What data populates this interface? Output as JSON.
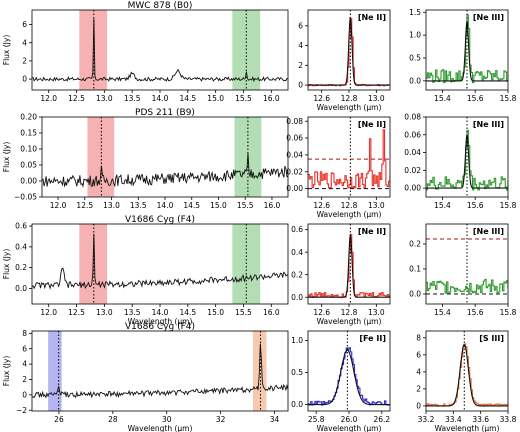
{
  "chart_data": [
    {
      "id": "p1",
      "type": "line",
      "title": "MWC 878 (B0)",
      "xlabel": "",
      "ylabel": "Flux (Jy)",
      "xlim": [
        11.7,
        16.3
      ],
      "ylim": [
        -1.2,
        7.6
      ],
      "xticks": [
        "12.0",
        "12.5",
        "13.0",
        "13.5",
        "14.0",
        "14.5",
        "15.0",
        "15.5",
        "16.0"
      ],
      "yticks": [
        "0",
        "2",
        "4",
        "6"
      ],
      "bands": [
        {
          "from": 12.55,
          "to": 13.05,
          "color": "red"
        },
        {
          "from": 15.3,
          "to": 15.8,
          "color": "green"
        }
      ],
      "vlines": [
        12.81,
        15.55
      ],
      "line_color": "black",
      "features": [
        {
          "x": 12.81,
          "h": 6.8,
          "w": 0.008
        },
        {
          "x": 13.5,
          "h": 0.6,
          "w": 0.04
        },
        {
          "x": 14.32,
          "h": 0.9,
          "w": 0.05
        },
        {
          "x": 15.55,
          "h": 1.0,
          "w": 0.01
        }
      ],
      "baseline": 0,
      "noise": 0.2,
      "trend": 0
    },
    {
      "id": "p2",
      "type": "line",
      "title": "[Ne II]",
      "xlabel": "Wavelength (μm)",
      "ylabel": "",
      "xlim": [
        12.5,
        13.1
      ],
      "ylim": [
        -0.5,
        7.6
      ],
      "xticks": [
        "12.6",
        "12.8",
        "13.0"
      ],
      "yticks": [
        "0",
        "2",
        "4",
        "6"
      ],
      "vlines": [
        12.81
      ],
      "line_color": "red",
      "fit_color": "black",
      "features": [
        {
          "x": 12.81,
          "h": 6.8,
          "w": 0.012
        }
      ],
      "baseline": 0,
      "noise": 0.08,
      "trend": 0,
      "step": true
    },
    {
      "id": "p3",
      "type": "line",
      "title": "[Ne III]",
      "xlabel": "",
      "ylabel": "",
      "xlim": [
        15.3,
        15.8
      ],
      "ylim": [
        -0.2,
        1.55
      ],
      "xticks": [
        "15.4",
        "15.6",
        "15.8"
      ],
      "yticks": [
        "0.0",
        "0.5",
        "1.0",
        "1.5"
      ],
      "vlines": [
        15.55
      ],
      "line_color": "green",
      "fit_color": "black",
      "features": [
        {
          "x": 15.55,
          "h": 1.3,
          "w": 0.01
        }
      ],
      "baseline": 0.1,
      "noise": 0.15,
      "trend": 0,
      "step": true
    },
    {
      "id": "p4",
      "type": "line",
      "title": "PDS 211 (B9)",
      "xlabel": "",
      "ylabel": "Flux (Jy)",
      "xlim": [
        11.7,
        16.3
      ],
      "ylim": [
        -0.05,
        0.2
      ],
      "xticks": [
        "12.0",
        "12.5",
        "13.0",
        "13.5",
        "14.0",
        "14.5",
        "15.0",
        "15.5",
        "16.0"
      ],
      "yticks": [
        "−0.05",
        "0.00",
        "0.05",
        "0.10",
        "0.15",
        "0.20"
      ],
      "bands": [
        {
          "from": 12.55,
          "to": 13.05,
          "color": "red"
        },
        {
          "from": 15.3,
          "to": 15.8,
          "color": "green"
        }
      ],
      "vlines": [
        12.81,
        15.55
      ],
      "line_color": "black",
      "features": [
        {
          "x": 12.81,
          "h": 0.03,
          "w": 0.01
        },
        {
          "x": 15.55,
          "h": 0.05,
          "w": 0.01
        }
      ],
      "baseline": 0.0,
      "noise": 0.018,
      "trend": 0.03
    },
    {
      "id": "p5",
      "type": "line",
      "title": "[Ne II]",
      "xlabel": "Wavelength (μm)",
      "ylabel": "",
      "xlim": [
        12.5,
        13.1
      ],
      "ylim": [
        -0.01,
        0.085
      ],
      "xticks": [
        "12.6",
        "12.8",
        "13.0"
      ],
      "yticks": [
        "0.00",
        "0.02",
        "0.04",
        "0.06",
        "0.08"
      ],
      "vlines": [
        12.81
      ],
      "hlines": [
        {
          "y": 0.035,
          "color": "darkred"
        },
        {
          "y": 0.0,
          "color": "black"
        }
      ],
      "line_color": "red",
      "features": [
        {
          "x": 12.95,
          "h": 0.05,
          "w": 0.006
        },
        {
          "x": 13.05,
          "h": 0.055,
          "w": 0.006
        }
      ],
      "baseline": 0.01,
      "noise": 0.01,
      "trend": 0,
      "step": true
    },
    {
      "id": "p6",
      "type": "line",
      "title": "[Ne III]",
      "xlabel": "",
      "ylabel": "",
      "xlim": [
        15.3,
        15.8
      ],
      "ylim": [
        -0.01,
        0.08
      ],
      "xticks": [
        "15.4",
        "15.6",
        "15.8"
      ],
      "yticks": [
        "0.00",
        "0.02",
        "0.04",
        "0.06",
        "0.08"
      ],
      "vlines": [
        15.55
      ],
      "line_color": "green",
      "fit_color": "black",
      "features": [
        {
          "x": 15.55,
          "h": 0.06,
          "w": 0.01
        }
      ],
      "baseline": 0.005,
      "noise": 0.008,
      "trend": 0,
      "step": true
    },
    {
      "id": "p7",
      "type": "line",
      "title": "V1686 Cyg (F4)",
      "xlabel": "Wavelength (μm)",
      "ylabel": "Flux (Jy)",
      "xlim": [
        11.7,
        16.3
      ],
      "ylim": [
        -0.15,
        0.62
      ],
      "xticks": [
        "12.0",
        "12.5",
        "13.0",
        "13.5",
        "14.0",
        "14.5",
        "15.0",
        "15.5",
        "16.0"
      ],
      "yticks": [
        "0.0",
        "0.2",
        "0.4",
        "0.6"
      ],
      "bands": [
        {
          "from": 12.55,
          "to": 13.05,
          "color": "red"
        },
        {
          "from": 15.3,
          "to": 15.8,
          "color": "green"
        }
      ],
      "vlines": [
        12.81,
        15.55
      ],
      "line_color": "black",
      "features": [
        {
          "x": 12.81,
          "h": 0.5,
          "w": 0.01
        },
        {
          "x": 12.25,
          "h": 0.15,
          "w": 0.03
        }
      ],
      "baseline": 0.03,
      "noise": 0.03,
      "trend": 0.1
    },
    {
      "id": "p8",
      "type": "line",
      "title": "[Ne II]",
      "xlabel": "Wavelength (μm)",
      "ylabel": "",
      "xlim": [
        12.5,
        13.1
      ],
      "ylim": [
        -0.06,
        0.65
      ],
      "xticks": [
        "12.6",
        "12.8",
        "13.0"
      ],
      "yticks": [
        "0.0",
        "0.2",
        "0.4",
        "0.6"
      ],
      "vlines": [
        12.81
      ],
      "line_color": "red",
      "fit_color": "black",
      "features": [
        {
          "x": 12.81,
          "h": 0.55,
          "w": 0.012
        }
      ],
      "baseline": 0.02,
      "noise": 0.025,
      "trend": 0,
      "step": true
    },
    {
      "id": "p9",
      "type": "line",
      "title": "[Ne III]",
      "xlabel": "",
      "ylabel": "",
      "xlim": [
        15.3,
        15.8
      ],
      "ylim": [
        -0.04,
        0.28
      ],
      "xticks": [
        "15.4",
        "15.6",
        "15.8"
      ],
      "yticks": [
        "0.0",
        "0.1",
        "0.2"
      ],
      "vlines": [
        15.55
      ],
      "hlines": [
        {
          "y": 0.22,
          "color": "darkred"
        },
        {
          "y": 0.0,
          "color": "black"
        }
      ],
      "line_color": "green",
      "features": [],
      "baseline": 0.03,
      "noise": 0.03,
      "trend": 0,
      "step": true
    },
    {
      "id": "p10",
      "type": "line",
      "title": "V1686 Cyg (F4)",
      "xlabel": "Wavelength (μm)",
      "ylabel": "Flux (Jy)",
      "xlim": [
        25.0,
        34.5
      ],
      "ylim": [
        -2.1,
        8.3
      ],
      "xticks": [
        "26",
        "28",
        "30",
        "32",
        "34"
      ],
      "yticks": [
        "−2",
        "0",
        "2",
        "4",
        "6",
        "8"
      ],
      "bands": [
        {
          "from": 25.6,
          "to": 26.1,
          "color": "blue"
        },
        {
          "from": 33.2,
          "to": 33.7,
          "color": "orange"
        }
      ],
      "vlines": [
        25.99,
        33.48
      ],
      "line_color": "black",
      "features": [
        {
          "x": 25.99,
          "h": 1.0,
          "w": 0.04
        },
        {
          "x": 33.48,
          "h": 6.5,
          "w": 0.03
        }
      ],
      "baseline": 0.0,
      "noise": 0.35,
      "trend": 1.0
    },
    {
      "id": "p11",
      "type": "line",
      "title": "[Fe II]",
      "xlabel": "Wavelength (μm)",
      "ylabel": "",
      "xlim": [
        25.75,
        26.25
      ],
      "ylim": [
        -0.1,
        1.15
      ],
      "xticks": [
        "25.8",
        "26.0",
        "26.2"
      ],
      "yticks": [
        "0.0",
        "0.5",
        "1.0"
      ],
      "vlines": [
        25.99
      ],
      "line_color": "blue",
      "fit_color": "black",
      "features": [
        {
          "x": 25.99,
          "h": 0.85,
          "w": 0.04
        }
      ],
      "baseline": 0.03,
      "noise": 0.04,
      "trend": 0,
      "step": true
    },
    {
      "id": "p12",
      "type": "line",
      "title": "[S III]",
      "xlabel": "Wavelength (μm)",
      "ylabel": "",
      "xlim": [
        33.2,
        33.8
      ],
      "ylim": [
        -0.6,
        8.8
      ],
      "xticks": [
        "33.2",
        "33.4",
        "33.6",
        "33.8"
      ],
      "yticks": [
        "0",
        "2",
        "4",
        "6",
        "8"
      ],
      "vlines": [
        33.48
      ],
      "line_color": "orangered",
      "fit_color": "black",
      "features": [
        {
          "x": 33.48,
          "h": 7.2,
          "w": 0.03
        }
      ],
      "baseline": 0.1,
      "noise": 0.15,
      "trend": 0,
      "step": true
    }
  ],
  "colors": {
    "red_band": "#f4a4a4",
    "green_band": "#a6d8a6",
    "blue_band": "#a8a8ee",
    "orange_band": "#f6c0a0",
    "red": "#e8302a",
    "green": "#2f9a2f",
    "blue": "#2a2ad0",
    "orangered": "#e86a2a",
    "darkred": "#a01818",
    "black": "#111111"
  }
}
